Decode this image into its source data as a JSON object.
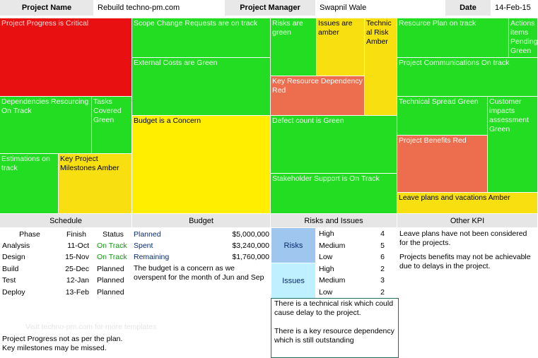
{
  "header": {
    "project_name_label": "Project Name",
    "project_name_value": "Rebuild techno-pm.com",
    "manager_label": "Project Manager",
    "manager_value": "Swapnil Wale",
    "date_label": "Date",
    "date_value": "14-Feb-15"
  },
  "tiles": [
    {
      "id": "tile-project-progress",
      "text": "Project Progress is Critical",
      "status": "red"
    },
    {
      "id": "tile-scope-change",
      "text": "Scope Change Requests are on track",
      "status": "green"
    },
    {
      "id": "tile-risks",
      "text": "Risks are green",
      "status": "green"
    },
    {
      "id": "tile-issues",
      "text": "Issues are amber",
      "status": "amber"
    },
    {
      "id": "tile-technical-risk",
      "text": "Technic al Risk Amber",
      "status": "amber"
    },
    {
      "id": "tile-resource-plan",
      "text": "Resource Plan on track",
      "status": "green"
    },
    {
      "id": "tile-actions",
      "text": "Actions items Pending Green",
      "status": "green"
    },
    {
      "id": "tile-external-costs",
      "text": "External Costs are Green",
      "status": "green"
    },
    {
      "id": "tile-key-resource",
      "text": "Key Resource Dependency Red",
      "status": "orange"
    },
    {
      "id": "tile-project-comms",
      "text": "Project Communications On track",
      "status": "green"
    },
    {
      "id": "tile-dependencies",
      "text": "Dependencies Resourcing On Track",
      "status": "green"
    },
    {
      "id": "tile-tasks",
      "text": "Tasks Covered Green",
      "status": "green"
    },
    {
      "id": "tile-budget",
      "text": "Budget is a Concern",
      "status": "yellow"
    },
    {
      "id": "tile-defect",
      "text": "Defect count is Green",
      "status": "green"
    },
    {
      "id": "tile-technical-spread",
      "text": "Technical Spread Green",
      "status": "green"
    },
    {
      "id": "tile-customer",
      "text": "Customer impacts assessment Green",
      "status": "green"
    },
    {
      "id": "tile-project-benefits",
      "text": "Project Benefits Red",
      "status": "orange"
    },
    {
      "id": "tile-estimations",
      "text": "Estimations on track",
      "status": "green"
    },
    {
      "id": "tile-key-milestones",
      "text": "Key Project Milestones Amber",
      "status": "amber"
    },
    {
      "id": "tile-stakeholder",
      "text": "Stakeholder Support is On Track",
      "status": "green"
    },
    {
      "id": "tile-leave-plans",
      "text": "Leave plans and vacations Amber",
      "status": "amber"
    }
  ],
  "schedule": {
    "title": "Schedule",
    "columns": [
      "Phase",
      "Finish",
      "Status"
    ],
    "rows": [
      {
        "phase": "Analysis",
        "finish": "11-Oct",
        "status": "On Track"
      },
      {
        "phase": "Design",
        "finish": "15-Nov",
        "status": "On Track"
      },
      {
        "phase": "Build",
        "finish": "25-Dec",
        "status": "Planned"
      },
      {
        "phase": "Test",
        "finish": "12-Jan",
        "status": "Planned"
      },
      {
        "phase": "Deploy",
        "finish": "13-Feb",
        "status": "Planned"
      }
    ],
    "faded_text": "Visit techno-pm.com for more templates",
    "note": "Project Progress not as per the plan. Key milestones may be missed."
  },
  "budget": {
    "title": "Budget",
    "rows": [
      {
        "label": "Planned",
        "value": "$5,000,000"
      },
      {
        "label": "Spent",
        "value": "$3,240,000"
      },
      {
        "label": "Remaining",
        "value": "$1,760,000"
      }
    ],
    "note": "The budget is a concern as we overspent for the month of Jun and Sep"
  },
  "risks_issues": {
    "title": "Risks and Issues",
    "risks_label": "Risks",
    "issues_label": "Issues",
    "risks": [
      {
        "level": "High",
        "count": "4"
      },
      {
        "level": "Medium",
        "count": "5"
      },
      {
        "level": "Low",
        "count": "6"
      }
    ],
    "issues": [
      {
        "level": "High",
        "count": "2"
      },
      {
        "level": "Medium",
        "count": "3"
      },
      {
        "level": "Low",
        "count": "2"
      }
    ],
    "note_1": "There is a technical risk which could cause delay to the project.",
    "note_2": "There is a key resource dependency which is still outstanding"
  },
  "other_kpi": {
    "title": "Other KPI",
    "note_1": "Leave plans have not been considered for the projects.",
    "note_2": "Projects benefits may not be achievable due to delays in the project."
  },
  "colors": {
    "green": "#22dd22",
    "red": "#e81010",
    "orange": "#ec6e4e",
    "yellow": "#ffee00",
    "amber": "#f7df10",
    "on_track_text": "#0a9a0a"
  }
}
